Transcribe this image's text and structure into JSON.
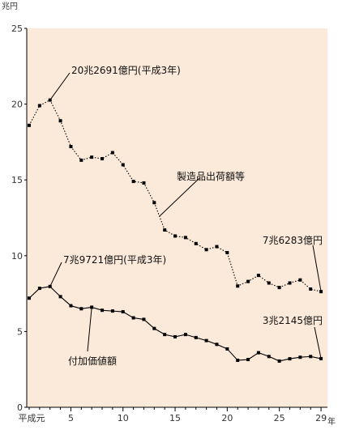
{
  "chart_data": {
    "type": "line",
    "y_unit": "兆円",
    "x_unit": "年",
    "ylim": [
      0,
      25
    ],
    "y_ticks": [
      0,
      5,
      10,
      15,
      20,
      25
    ],
    "x_tick_labels": [
      {
        "x": 1,
        "label": "平成元"
      },
      {
        "x": 5,
        "label": "5"
      },
      {
        "x": 10,
        "label": "10"
      },
      {
        "x": 15,
        "label": "15"
      },
      {
        "x": 20,
        "label": "20"
      },
      {
        "x": 25,
        "label": "25"
      },
      {
        "x": 29,
        "label": "29"
      }
    ],
    "grid": false,
    "x": [
      1,
      2,
      3,
      4,
      5,
      6,
      7,
      8,
      9,
      10,
      11,
      12,
      13,
      14,
      15,
      16,
      17,
      18,
      19,
      20,
      21,
      22,
      23,
      24,
      25,
      26,
      27,
      28,
      29
    ],
    "series": [
      {
        "name": "製造品出荷額等",
        "style": "dotted",
        "values": [
          18.6,
          19.9,
          20.27,
          18.9,
          17.2,
          16.3,
          16.5,
          16.4,
          16.8,
          16.0,
          14.9,
          14.8,
          13.5,
          11.7,
          11.3,
          11.2,
          10.8,
          10.4,
          10.6,
          10.2,
          8.0,
          8.3,
          8.7,
          8.2,
          7.9,
          8.2,
          8.4,
          7.8,
          7.63
        ]
      },
      {
        "name": "付加価値額",
        "style": "solid",
        "values": [
          7.2,
          7.85,
          7.97,
          7.3,
          6.7,
          6.5,
          6.6,
          6.4,
          6.35,
          6.3,
          5.9,
          5.8,
          5.2,
          4.8,
          4.65,
          4.8,
          4.6,
          4.4,
          4.15,
          3.85,
          3.1,
          3.15,
          3.6,
          3.35,
          3.05,
          3.2,
          3.3,
          3.35,
          3.21
        ]
      }
    ],
    "annotations": [
      {
        "text": "20兆2691億円(平成3年)",
        "series": 0,
        "point": 3
      },
      {
        "text": "7兆6283億円",
        "series": 0,
        "point": 29
      },
      {
        "text": "7兆9721億円(平成3年)",
        "series": 1,
        "point": 3
      },
      {
        "text": "3兆2145億円",
        "series": 1,
        "point": 29
      }
    ],
    "colors": {
      "plot_background": "#fbe9d9",
      "line": "#000000"
    }
  }
}
